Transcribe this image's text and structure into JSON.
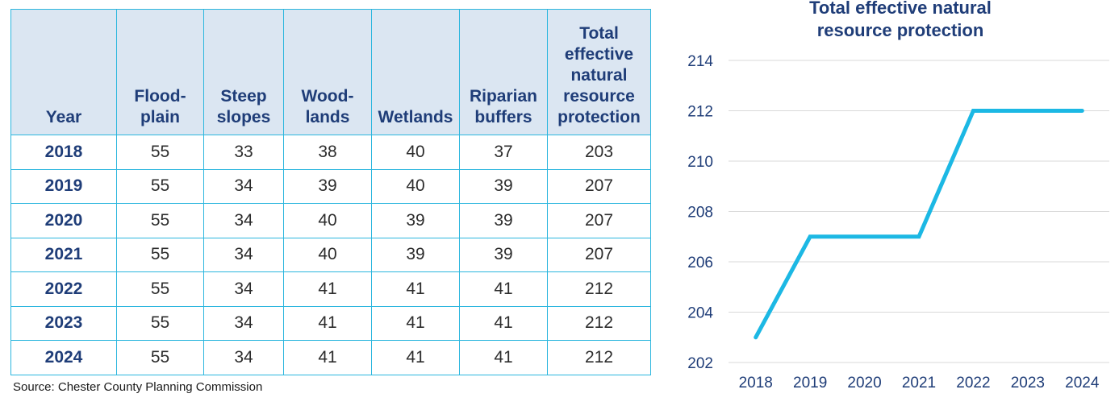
{
  "table": {
    "headers": [
      "Year",
      "Flood-\nplain",
      "Steep\nslopes",
      "Wood-\nlands",
      "Wetlands",
      "Riparian\nbuffers",
      "Total\neffective\nnatural\nresource\nprotection"
    ],
    "rows": [
      [
        "2018",
        "55",
        "33",
        "38",
        "40",
        "37",
        "203"
      ],
      [
        "2019",
        "55",
        "34",
        "39",
        "40",
        "39",
        "207"
      ],
      [
        "2020",
        "55",
        "34",
        "40",
        "39",
        "39",
        "207"
      ],
      [
        "2021",
        "55",
        "34",
        "40",
        "39",
        "39",
        "207"
      ],
      [
        "2022",
        "55",
        "34",
        "41",
        "41",
        "41",
        "212"
      ],
      [
        "2023",
        "55",
        "34",
        "41",
        "41",
        "41",
        "212"
      ],
      [
        "2024",
        "55",
        "34",
        "41",
        "41",
        "41",
        "212"
      ]
    ],
    "source": "Source: Chester County Planning Commission"
  },
  "chart_data": {
    "type": "line",
    "title": [
      "Total effective natural",
      "resource protection"
    ],
    "x": [
      "2018",
      "2019",
      "2020",
      "2021",
      "2022",
      "2023",
      "2024"
    ],
    "series": [
      {
        "values": [
          203,
          207,
          207,
          207,
          212,
          212,
          212
        ],
        "color": "#1cb8e4"
      }
    ],
    "yticks": [
      202,
      204,
      206,
      208,
      210,
      212,
      214
    ],
    "ylim": [
      202,
      214
    ],
    "grid": true,
    "gridColor": "#d9d9d9",
    "xlabel": "",
    "ylabel": ""
  }
}
